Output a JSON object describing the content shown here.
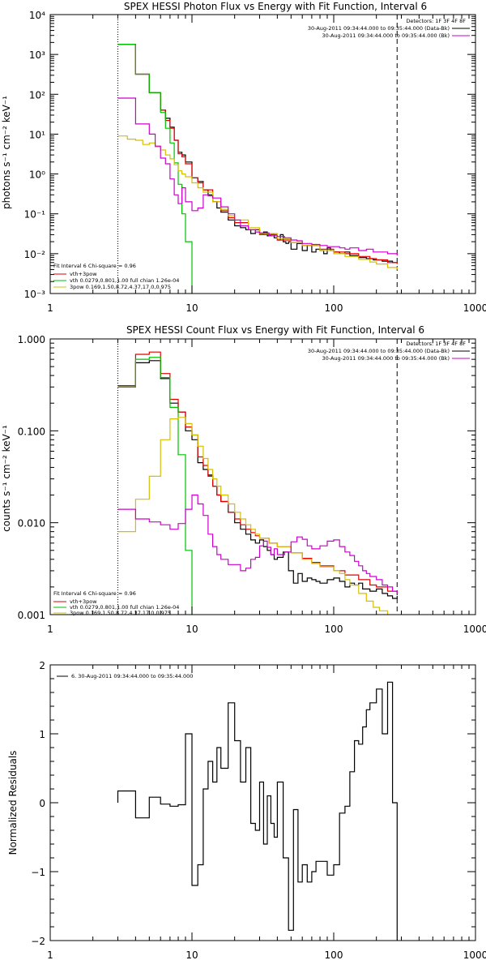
{
  "chart_data": [
    {
      "type": "line",
      "title": "SPEX HESSI Photon Flux vs Energy with Fit Function, Interval 6",
      "ylabel": "photons s⁻¹ cm⁻² keV⁻¹",
      "xlabel": "",
      "xscale": "log",
      "yscale": "log",
      "xlim": [
        1,
        1000
      ],
      "ylim": [
        0.001,
        10000
      ],
      "x_ticks": [
        "1",
        "10",
        "100",
        "1000"
      ],
      "y_ticks": [
        "10⁻³",
        "10⁻²",
        "10⁻¹",
        "10⁰",
        "10¹",
        "10²",
        "10³",
        "10⁴"
      ],
      "vlines": [
        {
          "x": 3,
          "style": "dotted"
        },
        {
          "x": 280,
          "style": "dashed"
        }
      ],
      "legend_top_right": {
        "header": "Detectors: 1F 3F 4F 8F",
        "entries": [
          {
            "label": "30-Aug-2011 09:34:44.000 to 09:35:44.000 (Data-Bk)",
            "color": "#000000"
          },
          {
            "label": "30-Aug-2011 09:34:44.000 to 09:35:44.000 (Bk)",
            "color": "#cc00cc"
          }
        ]
      },
      "legend_bottom_left": {
        "header": "Fit Interval 6   Chi-square = 0.96",
        "entries": [
          {
            "label": "vth+3pow",
            "color": "#e00000"
          },
          {
            "label": "vth 0.0279,0.801,1.00  full chian 1.26e-04",
            "color": "#00c000"
          },
          {
            "label": "3pow 0.169,1.50,8.72,4.37,17.0,0.975",
            "color": "#d4c000"
          }
        ]
      },
      "series": [
        {
          "color": "#000000",
          "x": [
            3,
            3.5,
            4,
            4.5,
            5,
            5.5,
            6,
            6.5,
            7,
            7.5,
            8,
            8.5,
            9,
            10,
            11,
            12,
            13,
            14,
            15,
            16,
            18,
            20,
            22,
            24,
            26,
            28,
            30,
            32,
            34,
            36,
            38,
            40,
            42,
            44,
            46,
            48,
            50,
            55,
            60,
            65,
            70,
            75,
            80,
            85,
            90,
            95,
            100,
            110,
            120,
            130,
            140,
            150,
            160,
            170,
            180,
            190,
            200,
            220,
            240,
            260,
            280
          ],
          "y": [
            1800,
            1800,
            320,
            320,
            110,
            110,
            40,
            25,
            15,
            7,
            3.5,
            3,
            2,
            0.8,
            0.65,
            0.4,
            0.3,
            0.2,
            0.14,
            0.11,
            0.07,
            0.05,
            0.045,
            0.04,
            0.032,
            0.04,
            0.03,
            0.035,
            0.028,
            0.03,
            0.025,
            0.022,
            0.03,
            0.02,
            0.018,
            0.02,
            0.013,
            0.018,
            0.012,
            0.016,
            0.011,
            0.013,
            0.012,
            0.01,
            0.014,
            0.012,
            0.011,
            0.01,
            0.011,
            0.009,
            0.009,
            0.008,
            0.008,
            0.0075,
            0.0075,
            0.007,
            0.007,
            0.0065,
            0.0065,
            0.006,
            0.006
          ]
        },
        {
          "color": "#e00000",
          "x": [
            3,
            3.5,
            4,
            4.5,
            5,
            5.5,
            6,
            6.5,
            7,
            7.5,
            8,
            8.5,
            9,
            10,
            11,
            12,
            14,
            16,
            18,
            20,
            25,
            30,
            40,
            50,
            60,
            80,
            100,
            120,
            150,
            180,
            200,
            240,
            280
          ],
          "y": [
            1800,
            1800,
            320,
            320,
            110,
            110,
            40,
            22,
            14,
            7,
            3.2,
            2.7,
            1.8,
            0.8,
            0.6,
            0.4,
            0.2,
            0.12,
            0.08,
            0.06,
            0.04,
            0.03,
            0.022,
            0.019,
            0.016,
            0.013,
            0.011,
            0.01,
            0.0085,
            0.0075,
            0.007,
            0.006,
            0.0055
          ]
        },
        {
          "color": "#00c000",
          "x": [
            3,
            3.5,
            4,
            4.5,
            5,
            5.5,
            6,
            6.5,
            7,
            7.5,
            8,
            8.5,
            9,
            10
          ],
          "y": [
            1800,
            1800,
            320,
            320,
            110,
            110,
            35,
            14,
            6,
            1.9,
            0.55,
            0.1,
            0.02,
            0.001
          ]
        },
        {
          "color": "#d4c000",
          "x": [
            3,
            3.5,
            4,
            4.5,
            5,
            5.5,
            6,
            6.5,
            7,
            7.5,
            8,
            8.5,
            9,
            10,
            11,
            12,
            14,
            16,
            18,
            20,
            25,
            30,
            40,
            50,
            60,
            80,
            100,
            120,
            150,
            180,
            200,
            240,
            280
          ],
          "y": [
            9,
            7.5,
            7,
            5.5,
            6,
            4.8,
            4,
            3,
            2.4,
            1.7,
            1.2,
            1,
            0.85,
            0.6,
            0.45,
            0.35,
            0.2,
            0.13,
            0.09,
            0.07,
            0.045,
            0.032,
            0.024,
            0.019,
            0.016,
            0.012,
            0.01,
            0.0085,
            0.0072,
            0.0062,
            0.0055,
            0.0045,
            0.004
          ]
        },
        {
          "color": "#cc00cc",
          "x": [
            3,
            3.5,
            4,
            4.5,
            5,
            5.5,
            6,
            6.5,
            7,
            7.5,
            8,
            8.5,
            9,
            10,
            11,
            12,
            13,
            14,
            16,
            18,
            20,
            22,
            25,
            28,
            30,
            35,
            40,
            45,
            50,
            55,
            60,
            70,
            80,
            90,
            100,
            110,
            120,
            130,
            150,
            170,
            190,
            210,
            240,
            280
          ],
          "y": [
            80,
            80,
            18,
            18,
            10,
            5,
            2.5,
            1.8,
            0.75,
            0.3,
            0.18,
            0.45,
            0.2,
            0.12,
            0.14,
            0.3,
            0.28,
            0.25,
            0.15,
            0.1,
            0.07,
            0.05,
            0.04,
            0.035,
            0.033,
            0.028,
            0.027,
            0.025,
            0.022,
            0.021,
            0.018,
            0.017,
            0.016,
            0.015,
            0.015,
            0.014,
            0.013,
            0.014,
            0.012,
            0.013,
            0.011,
            0.011,
            0.01,
            0.009
          ]
        }
      ]
    },
    {
      "type": "line",
      "title": "SPEX HESSI Count Flux vs Energy with Fit Function, Interval 6",
      "ylabel": "counts s⁻¹ cm⁻² keV⁻¹",
      "xlabel": "",
      "xscale": "log",
      "yscale": "log",
      "xlim": [
        1,
        1000
      ],
      "ylim": [
        0.001,
        1.0
      ],
      "x_ticks": [
        "1",
        "10",
        "100",
        "1000"
      ],
      "y_ticks": [
        "0.001",
        "0.010",
        "0.100",
        "1.000"
      ],
      "vlines": [
        {
          "x": 3,
          "style": "dotted"
        },
        {
          "x": 280,
          "style": "dashed"
        }
      ],
      "legend_top_right": {
        "header": "Detectors: 1F 3F 4F 8F",
        "entries": [
          {
            "label": "30-Aug-2011 09:34:44.000 to 09:35:44.000 (Data-Bk)",
            "color": "#000000"
          },
          {
            "label": "30-Aug-2011 09:34:44.000 to 09:35:44.000 (Bk)",
            "color": "#cc00cc"
          }
        ]
      },
      "legend_bottom_left": {
        "header": "Fit Interval 6   Chi-square = 0.96",
        "entries": [
          {
            "label": "vth+3pow",
            "color": "#e00000"
          },
          {
            "label": "vth 0.0279,0.801,1.00  full chian 1.26e-04",
            "color": "#00c000"
          },
          {
            "label": "3pow 0.169,1.50,8.72,4.37,17.0,0.975",
            "color": "#d4c000"
          }
        ]
      },
      "series": [
        {
          "color": "#000000",
          "x": [
            3,
            4,
            5,
            6,
            7,
            8,
            9,
            10,
            11,
            12,
            13,
            14,
            15,
            16,
            18,
            20,
            22,
            24,
            26,
            28,
            30,
            32,
            34,
            36,
            38,
            40,
            44,
            48,
            52,
            56,
            60,
            65,
            70,
            75,
            80,
            90,
            100,
            110,
            120,
            130,
            140,
            150,
            160,
            180,
            200,
            220,
            240,
            260,
            280
          ],
          "y": [
            0.3,
            0.55,
            0.58,
            0.37,
            0.2,
            0.16,
            0.1,
            0.08,
            0.045,
            0.038,
            0.033,
            0.025,
            0.02,
            0.017,
            0.013,
            0.01,
            0.0085,
            0.0075,
            0.0065,
            0.006,
            0.0065,
            0.0055,
            0.005,
            0.0045,
            0.004,
            0.0042,
            0.0048,
            0.003,
            0.0022,
            0.0028,
            0.0023,
            0.0025,
            0.0024,
            0.0023,
            0.0022,
            0.0024,
            0.0025,
            0.0023,
            0.002,
            0.0022,
            0.0021,
            0.0022,
            0.0019,
            0.0018,
            0.0019,
            0.0017,
            0.0016,
            0.0015,
            0.0016
          ]
        },
        {
          "color": "#e00000",
          "x": [
            3,
            4,
            5,
            6,
            7,
            8,
            9,
            10,
            11,
            12,
            13,
            14,
            15,
            16,
            18,
            20,
            22,
            24,
            26,
            28,
            30,
            35,
            40,
            50,
            60,
            70,
            80,
            100,
            120,
            150,
            180,
            200,
            240,
            280
          ],
          "y": [
            0.31,
            0.68,
            0.72,
            0.42,
            0.22,
            0.16,
            0.11,
            0.09,
            0.052,
            0.042,
            0.032,
            0.025,
            0.02,
            0.017,
            0.013,
            0.011,
            0.0095,
            0.0085,
            0.0078,
            0.0072,
            0.0068,
            0.006,
            0.0055,
            0.0047,
            0.0041,
            0.0037,
            0.0034,
            0.003,
            0.0027,
            0.0024,
            0.0021,
            0.002,
            0.0018,
            0.0017
          ]
        },
        {
          "color": "#00c000",
          "x": [
            3,
            4,
            5,
            6,
            7,
            8,
            9,
            10
          ],
          "y": [
            0.3,
            0.6,
            0.63,
            0.38,
            0.18,
            0.055,
            0.005,
            0.001
          ]
        },
        {
          "color": "#d4c000",
          "x": [
            3,
            4,
            5,
            6,
            7,
            8,
            9,
            10,
            11,
            12,
            13,
            14,
            15,
            16,
            18,
            20,
            22,
            24,
            26,
            28,
            30,
            35,
            40,
            50,
            60,
            70,
            80,
            100,
            110,
            120,
            130,
            150,
            170,
            190,
            210,
            240
          ],
          "y": [
            0.008,
            0.018,
            0.032,
            0.08,
            0.135,
            0.14,
            0.12,
            0.09,
            0.068,
            0.05,
            0.038,
            0.03,
            0.025,
            0.02,
            0.016,
            0.013,
            0.011,
            0.0095,
            0.0085,
            0.0075,
            0.0068,
            0.006,
            0.0055,
            0.0047,
            0.004,
            0.0036,
            0.0033,
            0.003,
            0.0028,
            0.0024,
            0.0021,
            0.0017,
            0.0014,
            0.0012,
            0.0011,
            0.001
          ]
        },
        {
          "color": "#cc00cc",
          "x": [
            3,
            4,
            5,
            6,
            7,
            8,
            9,
            10,
            11,
            12,
            13,
            14,
            15,
            16,
            18,
            20,
            22,
            24,
            26,
            28,
            30,
            32,
            34,
            36,
            38,
            40,
            45,
            50,
            55,
            60,
            65,
            70,
            80,
            90,
            100,
            110,
            120,
            130,
            140,
            150,
            160,
            170,
            180,
            200,
            220,
            240,
            260,
            280
          ],
          "y": [
            0.014,
            0.011,
            0.0102,
            0.0095,
            0.0085,
            0.0098,
            0.014,
            0.02,
            0.016,
            0.012,
            0.0075,
            0.0055,
            0.0045,
            0.004,
            0.0035,
            0.0035,
            0.003,
            0.0032,
            0.004,
            0.0042,
            0.0056,
            0.0063,
            0.0054,
            0.0045,
            0.0052,
            0.0045,
            0.0048,
            0.0062,
            0.007,
            0.0066,
            0.0056,
            0.0052,
            0.0056,
            0.0063,
            0.0065,
            0.0055,
            0.0048,
            0.0044,
            0.0038,
            0.0034,
            0.003,
            0.0028,
            0.0026,
            0.0024,
            0.0021,
            0.002,
            0.0018,
            0.0017
          ]
        }
      ]
    },
    {
      "type": "line",
      "title": "",
      "ylabel": "Normalized Residuals",
      "xlabel": "",
      "xscale": "log",
      "yscale": "linear",
      "xlim": [
        1,
        1000
      ],
      "ylim": [
        -2,
        2
      ],
      "x_ticks": [
        "1",
        "10",
        "100",
        "1000"
      ],
      "y_ticks": [
        "−2",
        "−1",
        "0",
        "1",
        "2"
      ],
      "legend": "6. 30-Aug-2011 09:34:44.000 to 09:35:44.000",
      "series": [
        {
          "color": "#000000",
          "x": [
            3,
            3.5,
            4,
            4.5,
            5,
            5.5,
            6,
            6.5,
            7,
            7.5,
            8,
            8.5,
            9,
            10,
            11,
            12,
            13,
            14,
            15,
            16,
            18,
            20,
            22,
            24,
            26,
            28,
            30,
            32,
            34,
            36,
            38,
            40,
            44,
            48,
            52,
            56,
            60,
            65,
            70,
            75,
            80,
            90,
            100,
            110,
            120,
            130,
            140,
            150,
            160,
            170,
            180,
            200,
            220,
            240,
            260,
            280
          ],
          "y": [
            0.17,
            0.17,
            -0.22,
            -0.22,
            0.08,
            0.08,
            -0.02,
            -0.02,
            -0.05,
            -0.05,
            -0.03,
            -0.03,
            1.0,
            -1.2,
            -0.9,
            0.2,
            0.6,
            0.3,
            0.8,
            0.5,
            1.45,
            0.9,
            0.3,
            0.8,
            -0.3,
            -0.4,
            0.3,
            -0.6,
            0.1,
            -0.3,
            -0.5,
            0.3,
            -0.8,
            -1.85,
            -0.1,
            -1.15,
            -0.9,
            -1.15,
            -1.0,
            -0.85,
            -0.85,
            -1.05,
            -0.9,
            -0.15,
            -0.05,
            0.45,
            0.9,
            0.85,
            1.1,
            1.35,
            1.45,
            1.65,
            1.0,
            1.75,
            0,
            -2
          ]
        }
      ]
    }
  ]
}
